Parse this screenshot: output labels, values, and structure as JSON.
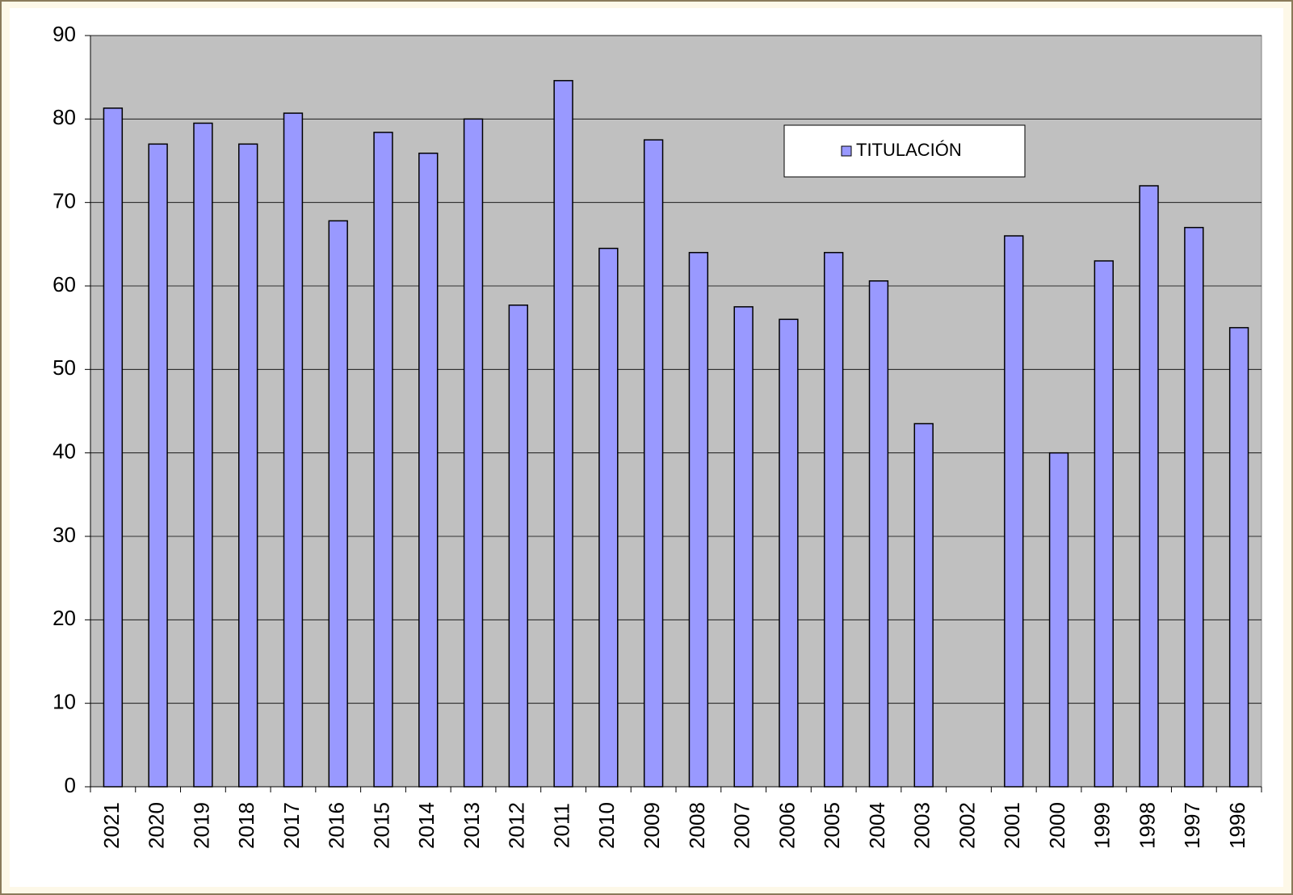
{
  "chart_data": {
    "type": "bar",
    "categories": [
      "2021",
      "2020",
      "2019",
      "2018",
      "2017",
      "2016",
      "2015",
      "2014",
      "2013",
      "2012",
      "2011",
      "2010",
      "2009",
      "2008",
      "2007",
      "2006",
      "2005",
      "2004",
      "2003",
      "2002",
      "2001",
      "2000",
      "1999",
      "1998",
      "1997",
      "1996"
    ],
    "series": [
      {
        "name": "TITULACIÓN",
        "color": "#9999ff",
        "values": [
          81.3,
          77,
          79.5,
          77,
          80.7,
          67.8,
          78.4,
          75.9,
          80,
          57.7,
          84.6,
          64.5,
          77.5,
          64,
          57.5,
          56,
          64,
          60.6,
          43.5,
          null,
          66,
          40,
          63,
          72,
          67,
          55
        ]
      }
    ],
    "ylim": [
      0,
      90
    ],
    "yticks": [
      0,
      10,
      20,
      30,
      40,
      50,
      60,
      70,
      80,
      90
    ],
    "grid": true,
    "legend": "top-right"
  }
}
